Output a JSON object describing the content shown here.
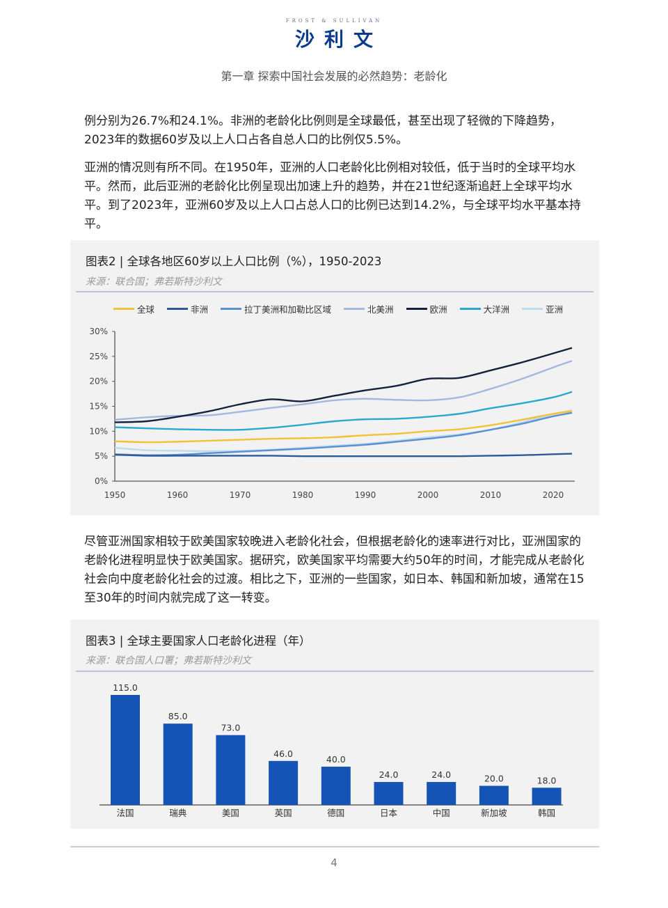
{
  "header": {
    "logo_en": "FROST & SULLIVAN",
    "logo_cn": "沙利文",
    "chapter_title": "第一章 探索中国社会发展的必然趋势：老龄化"
  },
  "paragraphs": [
    "例分别为26.7%和24.1%。非洲的老龄化比例则是全球最低，甚至出现了轻微的下降趋势，2023年的数据60岁及以上人口占各自总人口的比例仅5.5%。",
    "亚洲的情况则有所不同。在1950年，亚洲的人口老龄化比例相对较低，低于当时的全球平均水平。然而，此后亚洲的老龄化比例呈现出加速上升的趋势，并在21世纪逐渐追赶上全球平均水平。到了2023年，亚洲60岁及以上人口占总人口的比例已达到14.2%，与全球平均水平基本持平。",
    "尽管亚洲国家相较于欧美国家较晚进入老龄化社会，但根据老龄化的速率进行对比，亚洲国家的老龄化进程明显快于欧美国家。据研究，欧美国家平均需要大约50年的时间，才能完成从老龄化社会向中度老龄化社会的过渡。相比之下，亚洲的一些国家，如日本、韩国和新加坡，通常在15至30年的时间内就完成了这一转变。"
  ],
  "figure2": {
    "title": "图表2 | 全球各地区60岁以上人口比例（%），1950-2023",
    "source": "来源：联合国；弗若斯特沙利文"
  },
  "figure3": {
    "title": "图表3 | 全球主要国家人口老龄化进程（年）",
    "source": "来源：联合国人口署；弗若斯特沙利文"
  },
  "footer": {
    "page_number": "4"
  },
  "chart_data": [
    {
      "type": "line",
      "title": "全球各地区60岁以上人口比例（%），1950-2023",
      "xlabel": "",
      "ylabel": "",
      "x": [
        1950,
        1955,
        1960,
        1965,
        1970,
        1975,
        1980,
        1985,
        1990,
        1995,
        2000,
        2005,
        2010,
        2015,
        2020,
        2023
      ],
      "xticks": [
        1950,
        1960,
        1970,
        1980,
        1990,
        2000,
        2010,
        2020
      ],
      "yticks": [
        "0%",
        "5%",
        "10%",
        "15%",
        "20%",
        "25%",
        "30%"
      ],
      "ylim": [
        0,
        30
      ],
      "xlim": [
        1950,
        2023
      ],
      "grid": false,
      "legend_position": "top",
      "series": [
        {
          "name": "全球",
          "color": "#f2c233",
          "values": [
            8.0,
            7.8,
            7.9,
            8.1,
            8.3,
            8.5,
            8.6,
            8.8,
            9.2,
            9.5,
            10.0,
            10.4,
            11.2,
            12.3,
            13.5,
            14.0
          ]
        },
        {
          "name": "非洲",
          "color": "#2b5a9a",
          "values": [
            5.3,
            5.1,
            5.1,
            5.1,
            5.1,
            5.1,
            5.0,
            5.0,
            5.0,
            5.0,
            5.0,
            5.0,
            5.1,
            5.2,
            5.4,
            5.5
          ]
        },
        {
          "name": "拉丁美洲和加勒比区域",
          "color": "#5b8fd1",
          "values": [
            5.4,
            5.2,
            5.3,
            5.6,
            5.9,
            6.2,
            6.5,
            6.9,
            7.3,
            7.9,
            8.5,
            9.2,
            10.3,
            11.5,
            13.0,
            13.7
          ]
        },
        {
          "name": "北美洲",
          "color": "#a2b8dd",
          "values": [
            12.3,
            12.8,
            13.1,
            13.2,
            13.9,
            14.7,
            15.4,
            16.2,
            16.5,
            16.3,
            16.2,
            16.8,
            18.5,
            20.5,
            22.8,
            24.1
          ]
        },
        {
          "name": "欧洲",
          "color": "#14213d",
          "values": [
            11.8,
            12.0,
            12.9,
            14.0,
            15.4,
            16.4,
            16.0,
            17.1,
            18.2,
            19.1,
            20.5,
            20.7,
            22.2,
            23.8,
            25.6,
            26.7
          ]
        },
        {
          "name": "大洋洲",
          "color": "#27a8cf",
          "values": [
            10.8,
            10.6,
            10.4,
            10.3,
            10.3,
            10.7,
            11.3,
            12.0,
            12.4,
            12.5,
            12.9,
            13.5,
            14.6,
            15.6,
            16.8,
            17.9
          ]
        },
        {
          "name": "亚洲",
          "color": "#b9dcef",
          "values": [
            6.7,
            6.2,
            6.1,
            6.0,
            6.1,
            6.3,
            6.7,
            7.1,
            7.5,
            8.1,
            8.8,
            9.4,
            10.3,
            11.8,
            13.4,
            14.2
          ]
        }
      ]
    },
    {
      "type": "bar",
      "title": "全球主要国家人口老龄化进程（年）",
      "categories": [
        "法国",
        "瑞典",
        "美国",
        "英国",
        "德国",
        "日本",
        "中国",
        "新加坡",
        "韩国"
      ],
      "values": [
        115.0,
        85.0,
        73.0,
        46.0,
        40.0,
        24.0,
        24.0,
        20.0,
        18.0
      ],
      "value_labels": [
        "115.0",
        "85.0",
        "73.0",
        "46.0",
        "40.0",
        "24.0",
        "24.0",
        "20.0",
        "18.0"
      ],
      "color": "#1554b4",
      "xlabel": "",
      "ylabel": "",
      "grid": false
    }
  ]
}
